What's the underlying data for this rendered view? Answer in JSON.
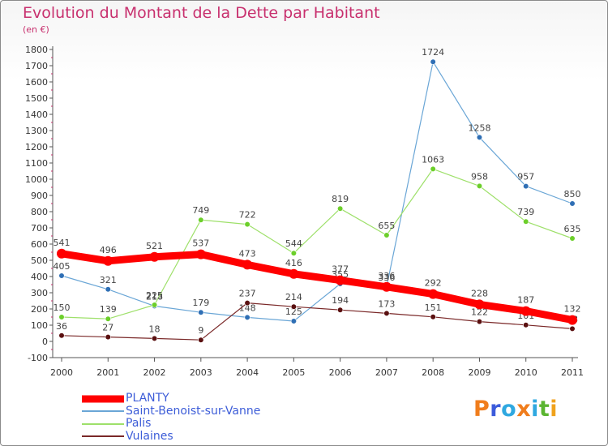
{
  "chart": {
    "title": "Evolution du Montant de la Dette par Habitant",
    "subtitle": "(en €)"
  },
  "brand": {
    "logo_text": "Proxiti",
    "logo_colors": [
      "#f07d1c",
      "#3b5bdb",
      "#2fa8e0",
      "#f07d1c",
      "#2fa8e0",
      "#5bb531",
      "#f0a21c"
    ]
  },
  "chart_data": {
    "type": "line",
    "title": "Evolution du Montant de la Dette par Habitant",
    "subtitle": "(en €)",
    "xlabel": "",
    "ylabel": "",
    "x": [
      "2000",
      "2001",
      "2002",
      "2003",
      "2004",
      "2005",
      "2006",
      "2007",
      "2008",
      "2009",
      "2010",
      "2011"
    ],
    "ylim": [
      -100,
      1800
    ],
    "yticks": [
      -100,
      0,
      100,
      200,
      300,
      400,
      500,
      600,
      700,
      800,
      900,
      1000,
      1100,
      1200,
      1300,
      1400,
      1500,
      1600,
      1700,
      1800
    ],
    "grid": false,
    "legend_position": "bottom-left",
    "series": [
      {
        "name": "PLANTY",
        "values": [
          541,
          496,
          521,
          537,
          473,
          416,
          377,
          336,
          292,
          228,
          187,
          132
        ],
        "color": "#ff0000",
        "marker": "#ff0000",
        "width": 9
      },
      {
        "name": "Saint-Benoist-sur-Vanne",
        "values": [
          405,
          321,
          218,
          179,
          148,
          125,
          355,
          336,
          1724,
          1258,
          957,
          850
        ],
        "color": "#6aa6d6",
        "marker": "#2f6fb5",
        "width": 1.2
      },
      {
        "name": "Palis",
        "values": [
          150,
          139,
          225,
          749,
          722,
          544,
          819,
          655,
          1063,
          958,
          739,
          635
        ],
        "color": "#9ee06a",
        "marker": "#6ccf2a",
        "width": 1.2
      },
      {
        "name": "Vulaines",
        "values": [
          36,
          27,
          18,
          9,
          237,
          214,
          194,
          173,
          151,
          122,
          101,
          78
        ],
        "color": "#7a2828",
        "marker": "#5a1010",
        "width": 1.2
      }
    ]
  }
}
